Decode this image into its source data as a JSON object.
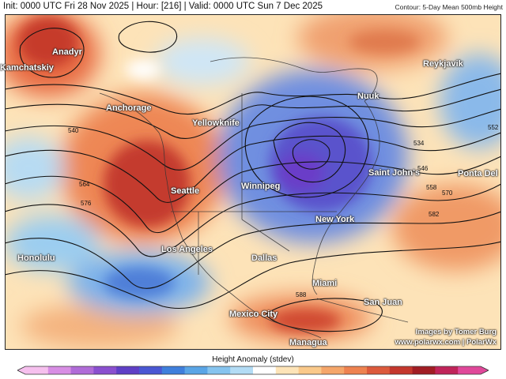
{
  "header": {
    "init_text": "Init: 0000 UTC Fri 28 Nov 2025 | Hour: [216] | Valid: 0000 UTC Sun 7 Dec 2025",
    "contour_note": "Contour: 5-Day Mean 500mb Height"
  },
  "map": {
    "cities": [
      {
        "name": "Anadyr"
      },
      {
        "name": "Kamchatskiy"
      },
      {
        "name": "Anchorage"
      },
      {
        "name": "Yellowknife"
      },
      {
        "name": "Seattle"
      },
      {
        "name": "Winnipeg"
      },
      {
        "name": "Nuuk"
      },
      {
        "name": "Reykjavik"
      },
      {
        "name": "Saint John's"
      },
      {
        "name": "Ponta Del"
      },
      {
        "name": "New York"
      },
      {
        "name": "Honolulu"
      },
      {
        "name": "Los Angeles"
      },
      {
        "name": "Dallas"
      },
      {
        "name": "Miami"
      },
      {
        "name": "San Juan"
      },
      {
        "name": "Mexico City"
      },
      {
        "name": "Managua"
      }
    ],
    "contour_labels": [
      "540",
      "564",
      "576",
      "552",
      "534",
      "546",
      "558",
      "570",
      "582",
      "588"
    ]
  },
  "credit": {
    "line1": "Images by Tomer Burg",
    "line2": "www.polarwx.com | PolarWx"
  },
  "colorbar": {
    "title": "Height Anomaly (stdev)",
    "colors": [
      "#f6c0ee",
      "#d88ee4",
      "#b06cd8",
      "#8a4fcf",
      "#5f3fc6",
      "#4a57d3",
      "#3f7fdc",
      "#5aa5e6",
      "#86c4ef",
      "#b3dcf5",
      "#ffffff",
      "#fde4b8",
      "#fac98a",
      "#f5a66a",
      "#ee8250",
      "#dc5a3c",
      "#c4372d",
      "#a11d24",
      "#c0245a",
      "#e0489a"
    ]
  }
}
